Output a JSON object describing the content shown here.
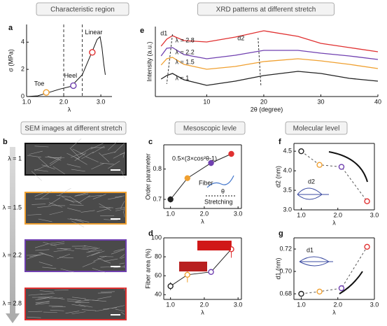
{
  "chart_data": [
    {
      "type": "line",
      "letter": "a",
      "header": "Characteristic region",
      "x": [
        1.0,
        1.3,
        1.6,
        1.9,
        2.2,
        2.5,
        2.75,
        2.9,
        2.98,
        3.03,
        3.08,
        3.12
      ],
      "series": [
        {
          "color": "#111111",
          "values": [
            0,
            0.05,
            0.3,
            0.55,
            0.75,
            1.6,
            3.2,
            4.2,
            4.4,
            3.6,
            2.4,
            1.6
          ]
        }
      ],
      "xlim": [
        1.0,
        3.3
      ],
      "ylim": [
        0,
        5.3
      ],
      "xticks": [
        {
          "value": 1,
          "label": "1.0"
        },
        {
          "value": 2,
          "label": "2.0"
        },
        {
          "value": 3,
          "label": "3.0"
        }
      ],
      "yticks": [
        0,
        2,
        4
      ],
      "x_label": "λ",
      "y_label": "σ (MPa)",
      "vlines": [
        2.0,
        2.5
      ],
      "highlights": {
        "labels": [
          "Toe",
          "Heel",
          "Linear"
        ],
        "x": [
          1.53,
          2.26,
          2.77
        ],
        "values": [
          0.3,
          0.8,
          3.25
        ],
        "colors": [
          "#f0a030",
          "#7040b0",
          "#e03030"
        ]
      }
    },
    {
      "type": "line",
      "letter": "e",
      "header": "XRD patterns at different stretch",
      "x": [
        2,
        3,
        4,
        6,
        10,
        15,
        20,
        26,
        30,
        35,
        40
      ],
      "series": [
        {
          "name": "λ = 2.8",
          "color": "#e03030",
          "values": [
            7.2,
            8.2,
            8.7,
            8.0,
            7.8,
            8.5,
            9.4,
            8.6,
            7.6,
            7.0,
            6.4
          ]
        },
        {
          "name": "λ = 2.2",
          "color": "#7040b0",
          "values": [
            5.8,
            6.9,
            7.0,
            6.0,
            5.4,
            5.9,
            6.6,
            6.6,
            6.2,
            5.8,
            5.3
          ]
        },
        {
          "name": "λ = 1.5",
          "color": "#f0a030",
          "values": [
            4.5,
            5.4,
            5.6,
            4.6,
            3.9,
            4.3,
            5.0,
            5.4,
            5.1,
            4.6,
            4.0
          ]
        },
        {
          "name": "λ = 1",
          "color": "#222222",
          "values": [
            2.5,
            3.0,
            3.3,
            2.4,
            1.6,
            2.2,
            3.0,
            3.6,
            3.3,
            2.6,
            2.2
          ]
        }
      ],
      "xlim": [
        1,
        40
      ],
      "ylim": [
        0,
        10
      ],
      "xticks": [
        10,
        20,
        30,
        40
      ],
      "x_label": "2θ (degree)",
      "y_label": "Intensity (a.u.)",
      "annotations": [
        "d1",
        "d2"
      ]
    },
    {
      "type": "line",
      "letter": "c",
      "header": "Mesoscopic levle",
      "x": [
        1.0,
        1.5,
        2.2,
        2.8
      ],
      "series": [
        {
          "color": "#222222",
          "values": [
            0.7,
            0.77,
            0.82,
            0.85
          ]
        }
      ],
      "errors": [
        0.01,
        0.005,
        0.01,
        0.005
      ],
      "marker_colors": [
        "#222222",
        "#f0a030",
        "#7040b0",
        "#e03030"
      ],
      "marker_fill": true,
      "xlim": [
        0.8,
        3.1
      ],
      "ylim": [
        0.67,
        0.88
      ],
      "xticks": [
        {
          "value": 1,
          "label": "1.0"
        },
        {
          "value": 2,
          "label": "2.0"
        },
        {
          "value": 3,
          "label": "3.0"
        }
      ],
      "yticks": [
        0.7,
        0.8
      ],
      "x_label": "λ",
      "y_label": "Order parameter",
      "annotations": [
        "0.5×(3×cos²θ-1)",
        "Fiber",
        "θ",
        "Stretching"
      ]
    },
    {
      "type": "line",
      "letter": "d",
      "x": [
        1.0,
        1.5,
        2.2,
        2.8
      ],
      "series": [
        {
          "color": "#222222",
          "values": [
            49,
            61,
            64,
            88
          ]
        }
      ],
      "errors": [
        4,
        8,
        1,
        9
      ],
      "marker_colors": [
        "#222222",
        "#f0a030",
        "#7040b0",
        "#e03030"
      ],
      "marker_fill": false,
      "xlim": [
        0.8,
        3.1
      ],
      "ylim": [
        35,
        100
      ],
      "xticks": [
        {
          "value": 1,
          "label": "1.0"
        },
        {
          "value": 2,
          "label": "2.0"
        },
        {
          "value": 3,
          "label": "3.0"
        }
      ],
      "yticks": [
        40,
        60,
        80,
        100
      ],
      "x_label": "λ",
      "y_label": "Fiber area (%)"
    },
    {
      "type": "line",
      "letter": "f",
      "header": "Molecular level",
      "x": [
        1.0,
        1.5,
        2.1,
        2.8
      ],
      "series": [
        {
          "color": "#555555",
          "values": [
            4.5,
            4.15,
            4.1,
            3.22
          ]
        }
      ],
      "dashed": true,
      "marker_colors": [
        "#222222",
        "#f0a030",
        "#7040b0",
        "#e03030"
      ],
      "marker_fill": false,
      "xlim": [
        0.8,
        3.0
      ],
      "ylim": [
        3.0,
        4.7
      ],
      "xticks": [
        {
          "value": 1,
          "label": "1.0"
        },
        {
          "value": 2,
          "label": "2.0"
        },
        {
          "value": 3,
          "label": "3.0"
        }
      ],
      "yticks": [
        {
          "value": 3,
          "label": "3.0"
        },
        3.5,
        {
          "value": 4,
          "label": "4.0"
        },
        4.5
      ],
      "x_label": "λ",
      "y_label": "d2 (nm)",
      "annotations": [
        "d2"
      ]
    },
    {
      "type": "line",
      "letter": "g",
      "x": [
        1.0,
        1.5,
        2.1,
        2.8
      ],
      "series": [
        {
          "color": "#555555",
          "values": [
            0.68,
            0.682,
            0.685,
            0.722
          ]
        }
      ],
      "dashed": true,
      "marker_colors": [
        "#222222",
        "#f0a030",
        "#7040b0",
        "#e03030"
      ],
      "marker_fill": false,
      "xlim": [
        0.8,
        3.0
      ],
      "ylim": [
        0.675,
        0.73
      ],
      "xticks": [
        {
          "value": 1,
          "label": "1.0"
        },
        {
          "value": 2,
          "label": "2.0"
        },
        {
          "value": 3,
          "label": "3.0"
        }
      ],
      "yticks": [
        0.68,
        {
          "value": 0.7,
          "label": "0.70"
        },
        0.72
      ],
      "x_label": "λ",
      "y_label": "d1 (nm)",
      "annotations": [
        "d1"
      ]
    }
  ],
  "sem": {
    "letter": "b",
    "header": "SEM images at different stretch",
    "labels": [
      "λ = 1",
      "λ = 1.5",
      "λ = 2.2",
      "λ = 2.8"
    ]
  }
}
